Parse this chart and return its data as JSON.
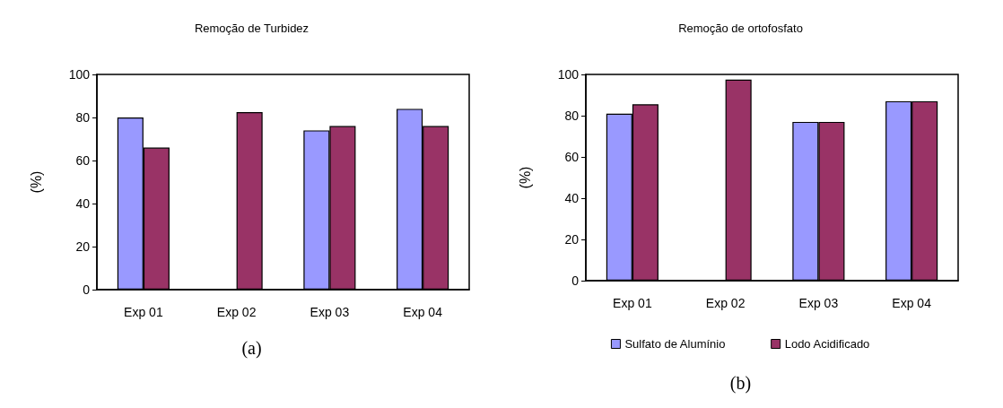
{
  "chart_data": [
    {
      "type": "bar",
      "title": "Remoção de Turbidez",
      "ylabel": "(%)",
      "categories": [
        "Exp 01",
        "Exp 02",
        "Exp 03",
        "Exp 04"
      ],
      "series": [
        {
          "color": "#9999ff",
          "values": [
            80,
            null,
            74,
            84
          ]
        },
        {
          "color": "#993366",
          "values": [
            66,
            82.5,
            76,
            76
          ]
        }
      ],
      "ylim": [
        0,
        100
      ],
      "yticks": [
        0,
        20,
        40,
        60,
        80,
        100
      ],
      "grid": false,
      "legend": false,
      "annotations": [
        "(a)"
      ]
    },
    {
      "type": "bar",
      "title": "Remoção de ortofosfato",
      "ylabel": "(%)",
      "categories": [
        "Exp 01",
        "Exp 02",
        "Exp 03",
        "Exp 04"
      ],
      "series": [
        {
          "name": "Sulfato de Alumínio",
          "color": "#9999ff",
          "values": [
            81,
            null,
            77,
            87
          ]
        },
        {
          "name": "Lodo Acidificado",
          "color": "#993366",
          "values": [
            85.5,
            97.5,
            77,
            87
          ]
        }
      ],
      "ylim": [
        0,
        100
      ],
      "yticks": [
        0,
        20,
        40,
        60,
        80,
        100
      ],
      "grid": false,
      "legend": "bottom",
      "annotations": [
        "(b)"
      ]
    }
  ]
}
